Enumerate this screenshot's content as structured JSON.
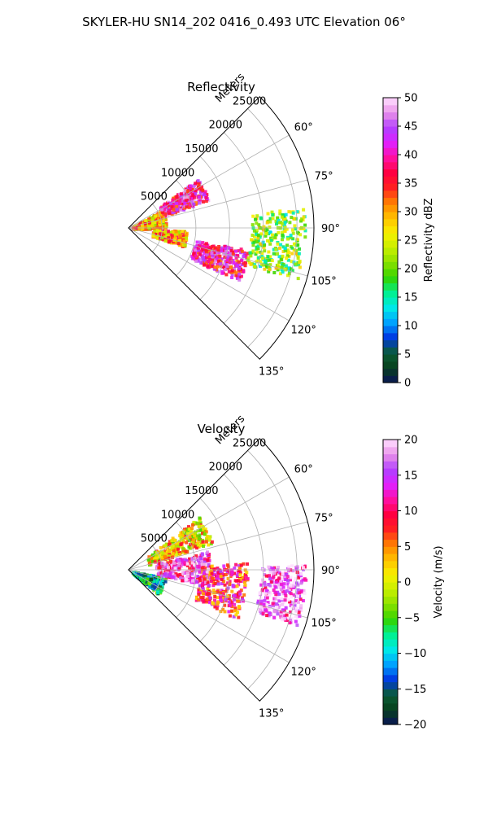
{
  "figure": {
    "suptitle": "SKYLER-HU  SN14_202  0416_0.493 UTC Elevation 06°"
  },
  "chart_data": [
    {
      "type": "heatmap",
      "projection": "polar-sector",
      "title": "Reflectivity",
      "radial_label": "Meters",
      "radial_ticks": [
        5000,
        10000,
        15000,
        20000,
        25000
      ],
      "radial_tick_labels": [
        "5000",
        "10000",
        "15000",
        "20000",
        "25000"
      ],
      "r_range": [
        0,
        27500
      ],
      "theta_range_deg": [
        45,
        135
      ],
      "theta_ticks_deg": [
        60,
        75,
        90,
        105,
        120,
        135
      ],
      "theta_tick_labels": [
        "60°",
        "75°",
        "90°",
        "105°",
        "120°",
        "135°"
      ],
      "grid": true,
      "colorbar": {
        "label": "Reflectivity dBZ",
        "range": [
          0,
          50
        ],
        "ticks": [
          0,
          5,
          10,
          15,
          20,
          25,
          30,
          35,
          40,
          45,
          50
        ],
        "tick_labels": [
          "0",
          "5",
          "10",
          "15",
          "20",
          "25",
          "30",
          "35",
          "40",
          "45",
          "50"
        ],
        "cmap_stops": [
          "#0a1458",
          "#07401c",
          "#0b5c35",
          "#0036e0",
          "#00a0ff",
          "#00e8e8",
          "#00f090",
          "#33d400",
          "#88e000",
          "#c8ef00",
          "#f7f000",
          "#ffc000",
          "#ff8000",
          "#ff2020",
          "#ff0040",
          "#ff10a0",
          "#e020ff",
          "#b040ff",
          "#e890e8",
          "#ffe0ff"
        ]
      }
    },
    {
      "type": "heatmap",
      "projection": "polar-sector",
      "title": "Velocity",
      "radial_label": "Meters",
      "radial_ticks": [
        5000,
        10000,
        15000,
        20000,
        25000
      ],
      "radial_tick_labels": [
        "5000",
        "10000",
        "15000",
        "20000",
        "25000"
      ],
      "r_range": [
        0,
        27500
      ],
      "theta_range_deg": [
        45,
        135
      ],
      "theta_ticks_deg": [
        60,
        75,
        90,
        105,
        120,
        135
      ],
      "theta_tick_labels": [
        "60°",
        "75°",
        "90°",
        "105°",
        "120°",
        "135°"
      ],
      "grid": true,
      "colorbar": {
        "label": "Velocity (m/s)",
        "range": [
          -20,
          20
        ],
        "ticks": [
          -20,
          -15,
          -10,
          -5,
          0,
          5,
          10,
          15,
          20
        ],
        "tick_labels": [
          "−20",
          "−15",
          "−10",
          "−5",
          "0",
          "5",
          "10",
          "15",
          "20"
        ],
        "cmap_stops": [
          "#0a1458",
          "#07401c",
          "#0b5c35",
          "#0036e0",
          "#00a0ff",
          "#00e8e8",
          "#00f090",
          "#33d400",
          "#88e000",
          "#c8ef00",
          "#f7f000",
          "#ffc000",
          "#ff8000",
          "#ff2020",
          "#ff0040",
          "#ff10a0",
          "#e020ff",
          "#b040ff",
          "#e890e8",
          "#ffe0ff"
        ]
      }
    }
  ]
}
